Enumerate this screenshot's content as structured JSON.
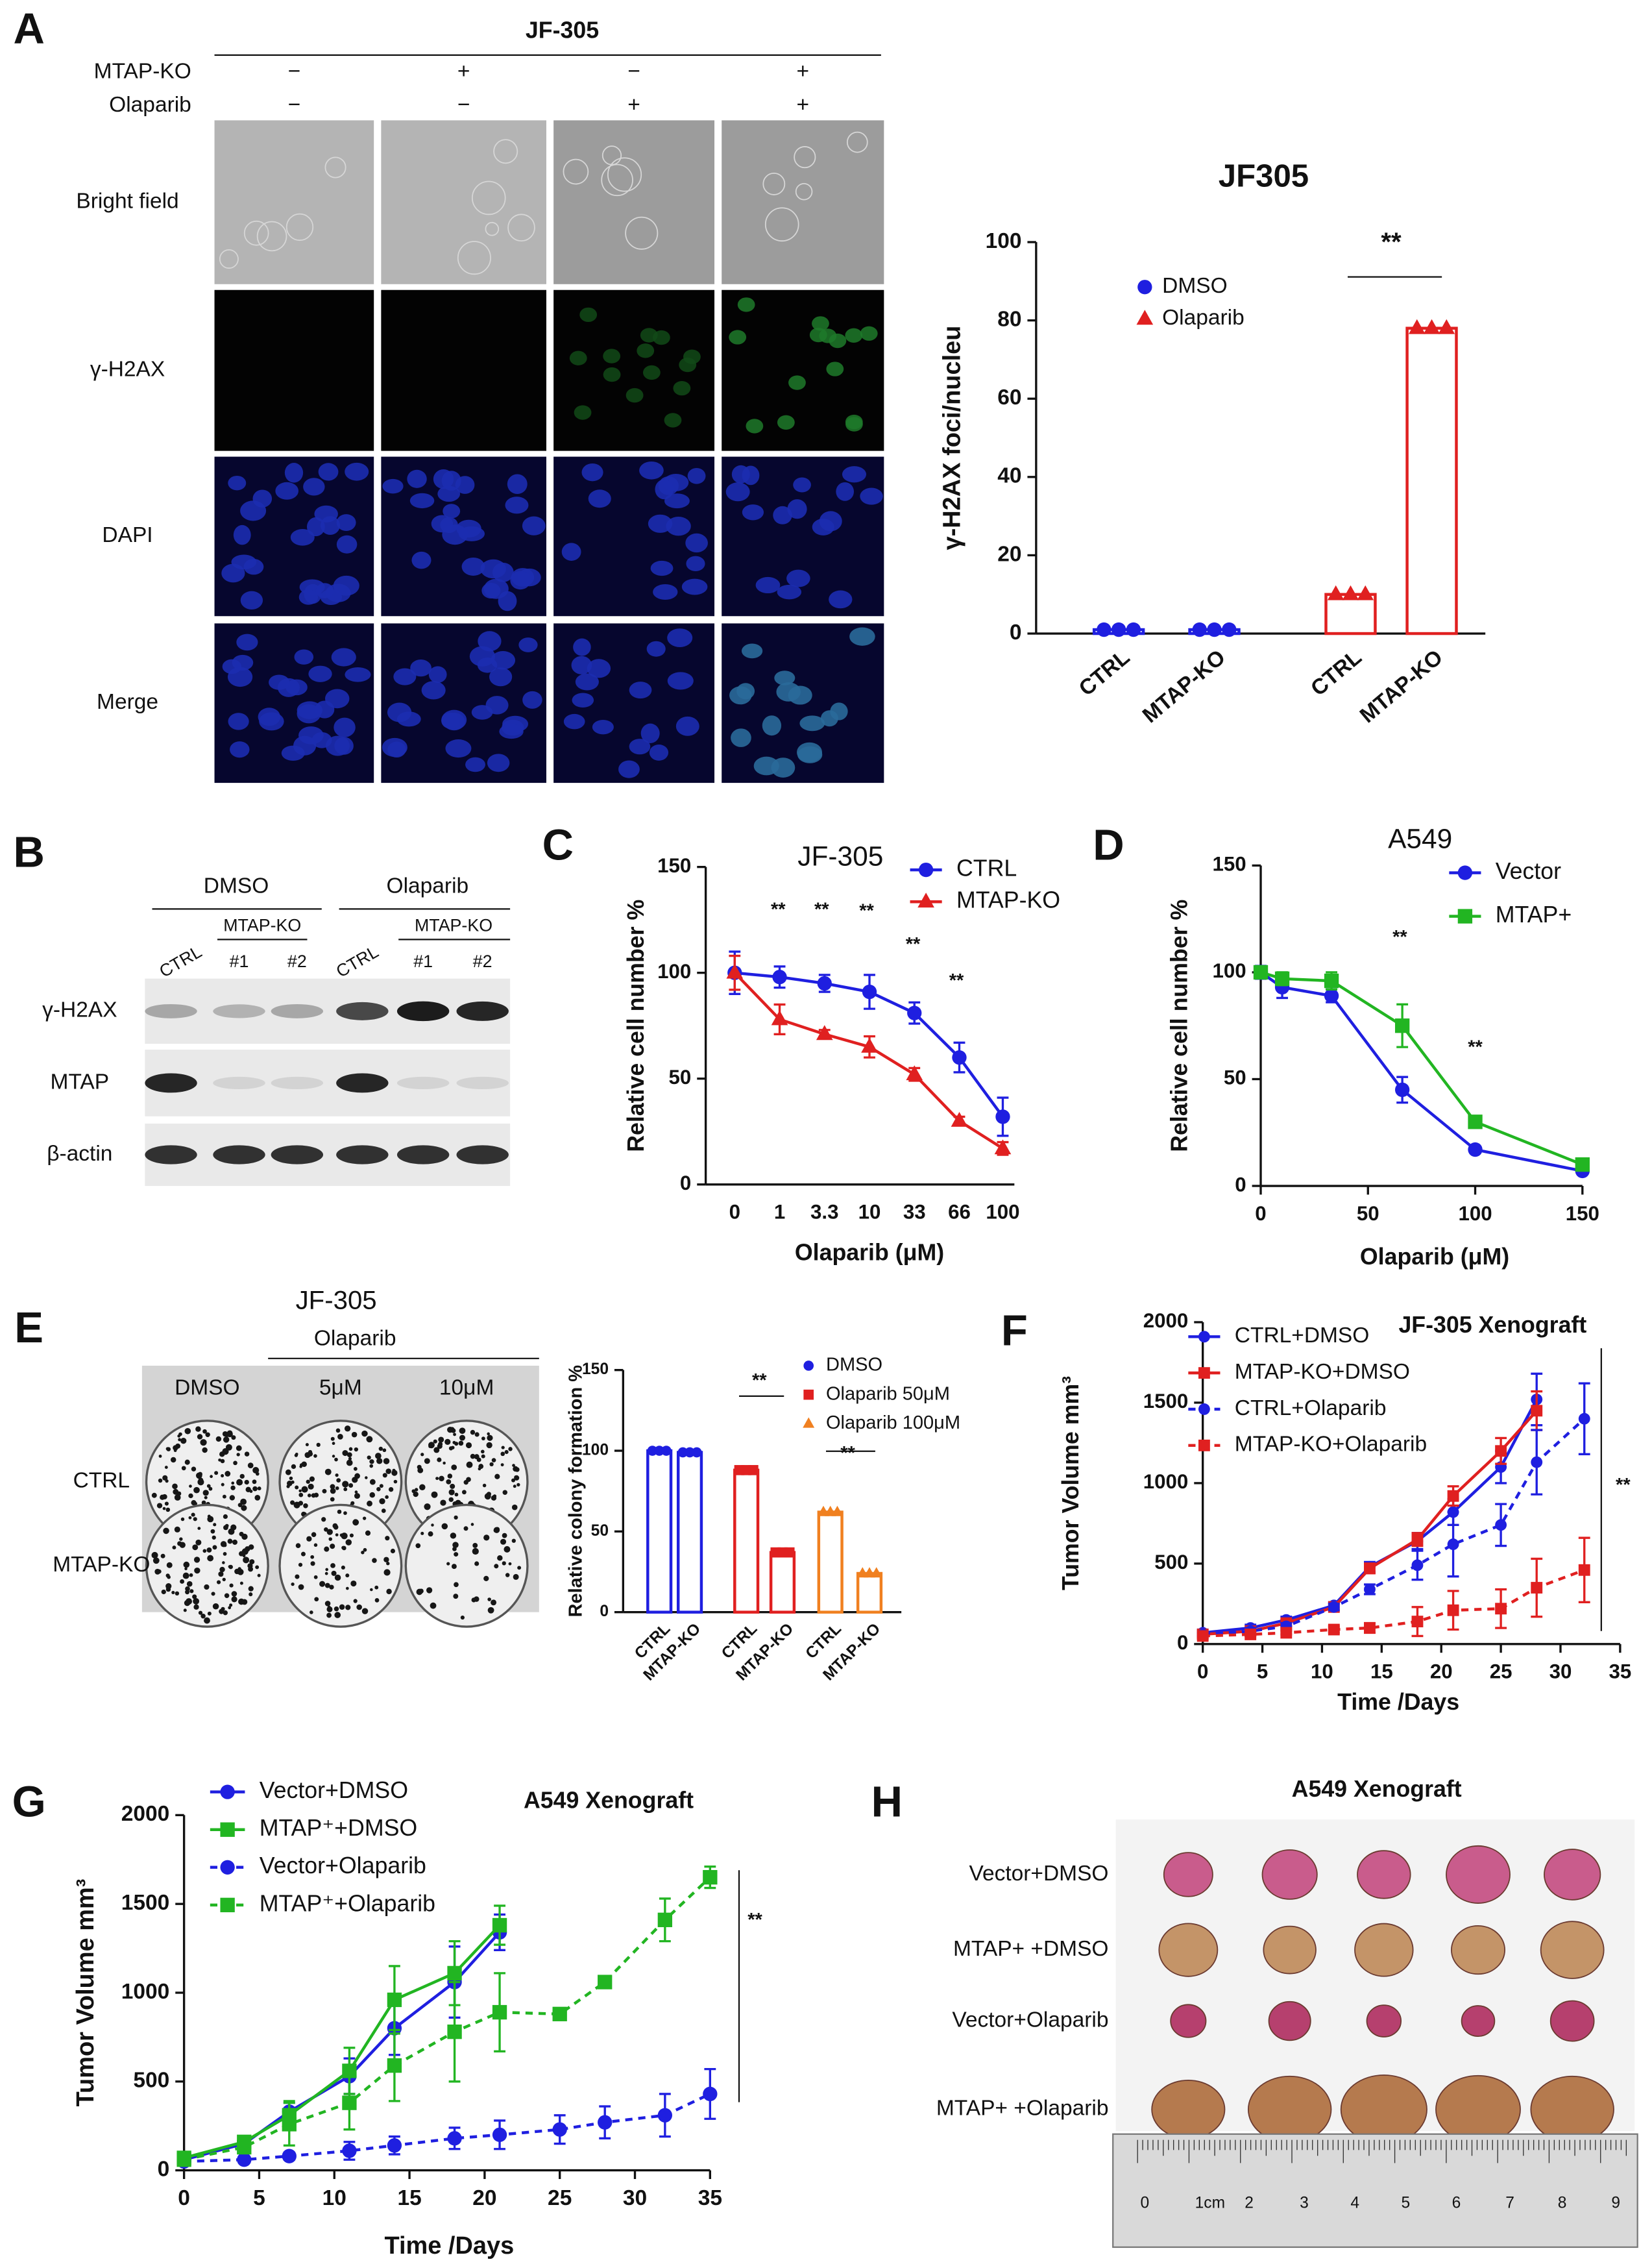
{
  "panel_labels": [
    "A",
    "B",
    "C",
    "D",
    "E",
    "F",
    "G",
    "H"
  ],
  "panel_a": {
    "title": "JF-305",
    "conditions": [
      {
        "label": "MTAP-KO",
        "signs": [
          "−",
          "+",
          "−",
          "+"
        ]
      },
      {
        "label": "Olaparib",
        "signs": [
          "−",
          "−",
          "+",
          "+"
        ]
      }
    ],
    "rows": [
      "Bright field",
      "γ-H2AX",
      "DAPI",
      "Merge"
    ]
  },
  "panel_b": {
    "groups": [
      "DMSO",
      "Olaparib"
    ],
    "lanes": [
      "CTRL",
      "CTRL"
    ],
    "subgroups": [
      "MTAP-KO",
      "MTAP-KO"
    ],
    "clones": [
      "#1",
      "#2",
      "#1",
      "#2"
    ],
    "rows": [
      "γ-H2AX",
      "MTAP",
      "β-actin"
    ]
  },
  "panel_e": {
    "title": "JF-305",
    "treatment": "Olaparib",
    "columns": [
      "DMSO",
      "5μM",
      "10μM"
    ],
    "rows": [
      "CTRL",
      "MTAP-KO"
    ]
  },
  "panel_h": {
    "title": "A549 Xenograft",
    "rows": [
      "Vector+DMSO",
      "MTAP+ +DMSO",
      "Vector+Olaparib",
      "MTAP+ +Olaparib"
    ],
    "ruler": [
      "0",
      "1cm",
      "2",
      "3",
      "4",
      "5",
      "6",
      "7",
      "8",
      "9"
    ]
  },
  "chart_data": [
    {
      "type": "bar",
      "title": "JF305",
      "y_label": "γ-H2AX foci/nucleu",
      "categories": [
        "CTRL",
        "MTAP-KO",
        "CTRL",
        "MTAP-KO"
      ],
      "series": [
        {
          "name": "DMSO",
          "color": "#1f1fe0",
          "marker": "circle",
          "values": [
            1,
            1,
            null,
            null
          ]
        },
        {
          "name": "Olaparib",
          "color": "#e02020",
          "marker": "triangle",
          "values": [
            null,
            null,
            10,
            78
          ]
        }
      ],
      "ylim": [
        0,
        100
      ],
      "yticks": [
        0,
        20,
        40,
        60,
        80,
        100
      ],
      "annotations": [
        "**"
      ]
    },
    {
      "type": "line",
      "title": "JF-305",
      "x_label": "Olaparib (μM)",
      "y_label": "Relative cell number %",
      "categories": [
        "0",
        "1",
        "3.3",
        "10",
        "33",
        "66",
        "100"
      ],
      "series": [
        {
          "name": "CTRL",
          "color": "#1f1fe0",
          "marker": "circle",
          "values": [
            100,
            98,
            95,
            91,
            81,
            60,
            32
          ],
          "errors": [
            10,
            5,
            4,
            8,
            5,
            7,
            9
          ]
        },
        {
          "name": "MTAP-KO",
          "color": "#e02020",
          "marker": "triangle",
          "values": [
            100,
            78,
            71,
            65,
            52,
            30,
            17
          ],
          "errors": [
            8,
            7,
            2,
            5,
            3,
            2,
            3
          ]
        }
      ],
      "ylim": [
        0,
        150
      ],
      "yticks": [
        0,
        50,
        100,
        150
      ],
      "annotations": [
        "**",
        "**",
        "**",
        "**",
        "**"
      ]
    },
    {
      "type": "line",
      "title": "A549",
      "x_label": "Olaparib (μM)",
      "y_label": "Relative cell number %",
      "x": [
        0,
        10,
        33,
        66,
        100,
        150
      ],
      "series": [
        {
          "name": "Vector",
          "color": "#1f1fe0",
          "marker": "circle",
          "values": [
            100,
            93,
            89,
            45,
            17,
            7
          ],
          "errors": [
            3,
            5,
            3,
            6,
            1,
            1
          ]
        },
        {
          "name": "MTAP+",
          "color": "#22b522",
          "marker": "square",
          "values": [
            100,
            97,
            96,
            75,
            30,
            10
          ],
          "errors": [
            2,
            3,
            4,
            10,
            2,
            1
          ]
        }
      ],
      "xlim": [
        0,
        150
      ],
      "xticks": [
        0,
        50,
        100,
        150
      ],
      "ylim": [
        0,
        150
      ],
      "yticks": [
        0,
        50,
        100,
        150
      ],
      "annotations": [
        "**",
        "**"
      ]
    },
    {
      "type": "bar",
      "y_label": "Relative colony formation %",
      "categories": [
        "CTRL",
        "MTAP-KO",
        "CTRL",
        "MTAP-KO",
        "CTRL",
        "MTAP-KO"
      ],
      "series": [
        {
          "name": "DMSO",
          "color": "#1f1fe0",
          "marker": "circle",
          "values": [
            100,
            99,
            null,
            null,
            null,
            null
          ]
        },
        {
          "name": "Olaparib 50μM",
          "color": "#e02020",
          "marker": "square",
          "values": [
            null,
            null,
            88,
            37,
            null,
            null
          ]
        },
        {
          "name": "Olaparib 100μM",
          "color": "#f08020",
          "marker": "triangle",
          "values": [
            null,
            null,
            null,
            null,
            62,
            24
          ]
        }
      ],
      "ylim": [
        0,
        150
      ],
      "yticks": [
        0,
        50,
        100,
        150
      ],
      "annotations": [
        "**",
        "**"
      ]
    },
    {
      "type": "line",
      "title": "JF-305 Xenograft",
      "x_label": "Time /Days",
      "y_label": "Tumor Volume mm³",
      "x": [
        0,
        4,
        7,
        11,
        14,
        18,
        21,
        25,
        28,
        32
      ],
      "series": [
        {
          "name": "CTRL+DMSO",
          "color": "#1f1fe0",
          "marker": "circle",
          "dashed": false,
          "values": [
            70,
            100,
            150,
            240,
            480,
            640,
            820,
            1100,
            1520,
            null
          ],
          "errors": [
            20,
            20,
            20,
            20,
            30,
            50,
            80,
            100,
            160,
            null
          ]
        },
        {
          "name": "MTAP-KO+DMSO",
          "color": "#e02020",
          "marker": "square",
          "dashed": false,
          "values": [
            60,
            80,
            130,
            230,
            470,
            650,
            920,
            1200,
            1450,
            null
          ],
          "errors": [
            20,
            20,
            20,
            20,
            30,
            40,
            60,
            80,
            120,
            null
          ]
        },
        {
          "name": "CTRL+Olaparib",
          "color": "#1f1fe0",
          "marker": "circle",
          "dashed": true,
          "values": [
            60,
            80,
            110,
            230,
            340,
            490,
            620,
            740,
            1130,
            1400
          ],
          "errors": [
            10,
            20,
            20,
            20,
            30,
            90,
            200,
            130,
            200,
            220
          ]
        },
        {
          "name": "MTAP-KO+Olaparib",
          "color": "#e02020",
          "marker": "square",
          "dashed": true,
          "values": [
            50,
            60,
            70,
            90,
            100,
            140,
            210,
            220,
            350,
            460
          ],
          "errors": [
            10,
            10,
            10,
            20,
            30,
            90,
            120,
            120,
            180,
            200
          ]
        }
      ],
      "xlim": [
        0,
        35
      ],
      "xticks": [
        0,
        5,
        10,
        15,
        20,
        25,
        30,
        35
      ],
      "ylim": [
        0,
        2000
      ],
      "yticks": [
        0,
        500,
        1000,
        1500,
        2000
      ],
      "annotations": [
        "**"
      ]
    },
    {
      "type": "line",
      "title": "A549 Xenograft",
      "x_label": "Time /Days",
      "y_label": "Tumor Volume mm³",
      "x": [
        0,
        4,
        7,
        11,
        14,
        18,
        21,
        25,
        28,
        32,
        35
      ],
      "series": [
        {
          "name": "Vector+DMSO",
          "color": "#1f1fe0",
          "marker": "circle",
          "dashed": false,
          "values": [
            60,
            150,
            330,
            530,
            800,
            1060,
            1340,
            null,
            null,
            null,
            null
          ],
          "errors": [
            20,
            20,
            50,
            100,
            150,
            200,
            100,
            null,
            null,
            null,
            null
          ]
        },
        {
          "name": "MTAP⁺+DMSO",
          "color": "#22b522",
          "marker": "square",
          "dashed": false,
          "values": [
            70,
            160,
            310,
            560,
            960,
            1110,
            1380,
            null,
            null,
            null,
            null
          ],
          "errors": [
            20,
            20,
            80,
            130,
            190,
            180,
            110,
            null,
            null,
            null,
            null
          ]
        },
        {
          "name": "Vector+Olaparib",
          "color": "#1f1fe0",
          "marker": "circle",
          "dashed": true,
          "values": [
            50,
            60,
            80,
            110,
            140,
            180,
            200,
            230,
            270,
            310,
            430
          ],
          "errors": [
            10,
            10,
            20,
            50,
            50,
            60,
            80,
            80,
            90,
            120,
            140
          ]
        },
        {
          "name": "MTAP⁺+Olaparib",
          "color": "#22b522",
          "marker": "square",
          "dashed": true,
          "values": [
            60,
            130,
            260,
            380,
            590,
            780,
            890,
            880,
            1060,
            1410,
            1650
          ],
          "errors": [
            20,
            30,
            120,
            150,
            200,
            280,
            220,
            20,
            20,
            120,
            60
          ]
        }
      ],
      "xlim": [
        0,
        35
      ],
      "xticks": [
        0,
        5,
        10,
        15,
        20,
        25,
        30,
        35
      ],
      "ylim": [
        0,
        2000
      ],
      "yticks": [
        0,
        500,
        1000,
        1500,
        2000
      ],
      "annotations": [
        "**"
      ]
    }
  ]
}
